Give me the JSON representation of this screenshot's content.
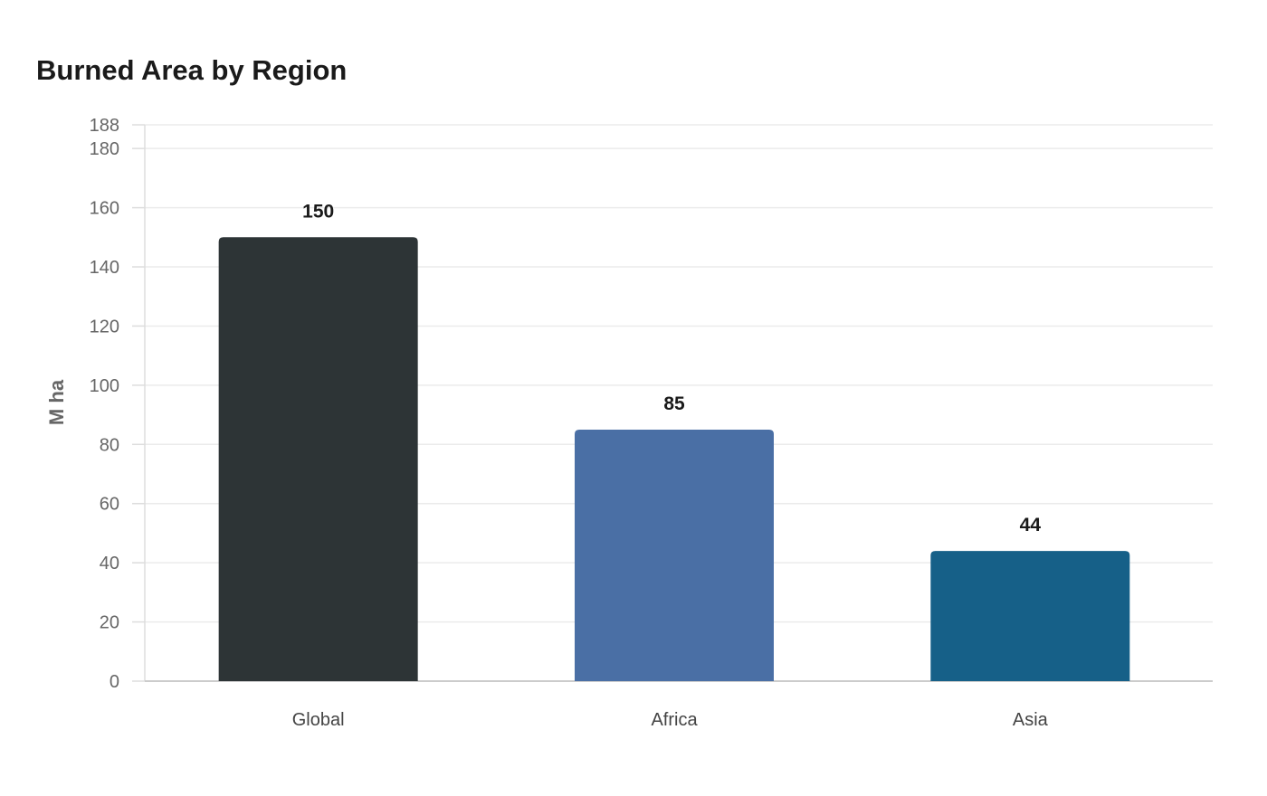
{
  "chart_data": {
    "type": "bar",
    "title": "Burned Area by Region",
    "xlabel": "",
    "ylabel": "M ha",
    "categories": [
      "Global",
      "Africa",
      "Asia"
    ],
    "values": [
      150,
      85,
      44
    ],
    "colors": [
      "#2d3436",
      "#4a6fa5",
      "#166088"
    ],
    "ylim": [
      0,
      188
    ],
    "yticks": [
      0,
      20,
      40,
      60,
      80,
      100,
      120,
      140,
      160,
      180,
      188
    ],
    "grid": true,
    "legend": "none"
  }
}
